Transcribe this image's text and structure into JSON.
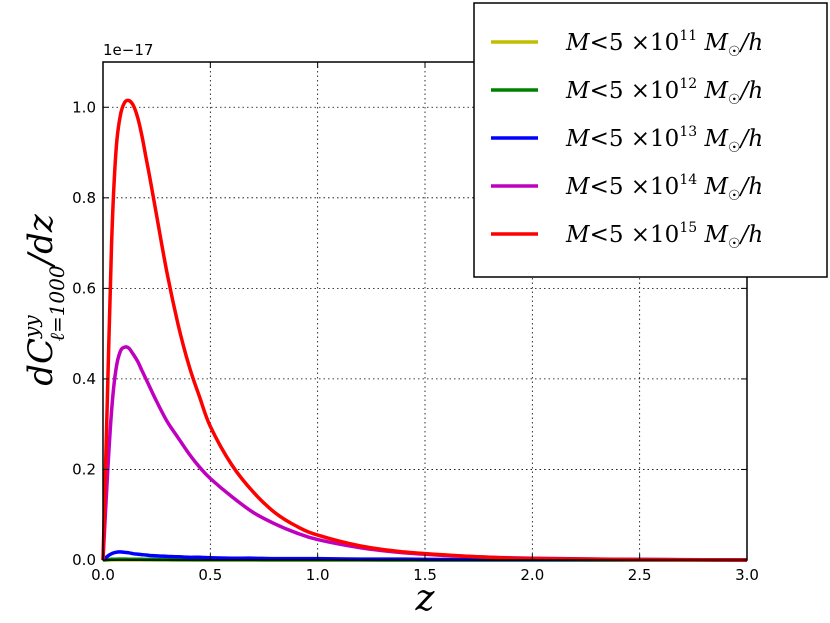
{
  "chart_data": {
    "type": "line",
    "xlabel": "z",
    "ylabel": {
      "base": "dC",
      "sup": "yy",
      "sub": "ℓ=1000",
      "tail": "/dz"
    },
    "y_scale_label": "1e−17",
    "xlim": [
      0.0,
      3.0
    ],
    "ylim": [
      0.0,
      1.1
    ],
    "x_ticks": [
      "0.0",
      "0.5",
      "1.0",
      "1.5",
      "2.0",
      "2.5",
      "3.0"
    ],
    "y_ticks": [
      "0.0",
      "0.2",
      "0.4",
      "0.6",
      "0.8",
      "1.0"
    ],
    "grid": true,
    "legend_position": "top-right",
    "x": [
      0.0,
      0.02,
      0.04,
      0.06,
      0.08,
      0.1,
      0.12,
      0.14,
      0.16,
      0.18,
      0.2,
      0.22,
      0.25,
      0.3,
      0.35,
      0.4,
      0.45,
      0.5,
      0.6,
      0.7,
      0.8,
      0.9,
      1.0,
      1.2,
      1.4,
      1.6,
      1.8,
      2.0,
      2.5,
      3.0
    ],
    "series": [
      {
        "name": "M < 5×10^11 M☉/h",
        "legend": {
          "prefix": "M",
          "mid": "<5 ×10",
          "exp": "11",
          "unit": "M",
          "unit_sub": "☉",
          "tail": "/h"
        },
        "color": "#bfbf00",
        "values": [
          0.0,
          0.0001,
          0.0002,
          0.0002,
          0.0002,
          0.0002,
          0.0002,
          0.0002,
          0.0002,
          0.0002,
          0.0002,
          0.0002,
          0.0002,
          0.0002,
          0.0001,
          0.0001,
          0.0001,
          0.0001,
          0.0001,
          0.0001,
          0.0001,
          0.0,
          0.0,
          0.0,
          0.0,
          0.0,
          0.0,
          0.0,
          0.0,
          0.0
        ]
      },
      {
        "name": "M < 5×10^12 M☉/h",
        "legend": {
          "prefix": "M",
          "mid": "<5 ×10",
          "exp": "12",
          "unit": "M",
          "unit_sub": "☉",
          "tail": "/h"
        },
        "color": "#008000",
        "values": [
          0.0,
          0.0008,
          0.0015,
          0.0018,
          0.0019,
          0.0019,
          0.0018,
          0.0017,
          0.0016,
          0.0015,
          0.0014,
          0.0013,
          0.0012,
          0.001,
          0.0009,
          0.0008,
          0.0007,
          0.0006,
          0.0005,
          0.0004,
          0.0003,
          0.0003,
          0.0002,
          0.0002,
          0.0001,
          0.0001,
          0.0001,
          0.0,
          0.0,
          0.0
        ]
      },
      {
        "name": "M < 5×10^13 M☉/h",
        "legend": {
          "prefix": "M",
          "mid": "<5 ×10",
          "exp": "13",
          "unit": "M",
          "unit_sub": "☉",
          "tail": "/h"
        },
        "color": "#0000ff",
        "values": [
          0.0,
          0.008,
          0.014,
          0.017,
          0.018,
          0.017,
          0.016,
          0.014,
          0.013,
          0.012,
          0.011,
          0.01,
          0.009,
          0.008,
          0.007,
          0.006,
          0.006,
          0.005,
          0.004,
          0.004,
          0.003,
          0.003,
          0.003,
          0.002,
          0.002,
          0.001,
          0.001,
          0.001,
          0.001,
          0.0
        ]
      },
      {
        "name": "M < 5×10^14 M☉/h",
        "legend": {
          "prefix": "M",
          "mid": "<5 ×10",
          "exp": "14",
          "unit": "M",
          "unit_sub": "☉",
          "tail": "/h"
        },
        "color": "#bf00bf",
        "values": [
          0.0,
          0.18,
          0.33,
          0.42,
          0.46,
          0.47,
          0.468,
          0.455,
          0.44,
          0.42,
          0.4,
          0.38,
          0.35,
          0.305,
          0.27,
          0.235,
          0.205,
          0.18,
          0.14,
          0.105,
          0.08,
          0.06,
          0.045,
          0.027,
          0.016,
          0.01,
          0.006,
          0.004,
          0.001,
          0.0
        ]
      },
      {
        "name": "M < 5×10^15 M☉/h",
        "legend": {
          "prefix": "M",
          "mid": "<5 ×10",
          "exp": "15",
          "unit": "M",
          "unit_sub": "☉",
          "tail": "/h"
        },
        "color": "#ff0000",
        "values": [
          0.0,
          0.35,
          0.7,
          0.9,
          0.98,
          1.01,
          1.015,
          1.005,
          0.98,
          0.94,
          0.89,
          0.84,
          0.76,
          0.63,
          0.52,
          0.43,
          0.36,
          0.295,
          0.21,
          0.15,
          0.105,
          0.075,
          0.055,
          0.031,
          0.018,
          0.011,
          0.006,
          0.003,
          0.001,
          0.0
        ]
      }
    ]
  }
}
